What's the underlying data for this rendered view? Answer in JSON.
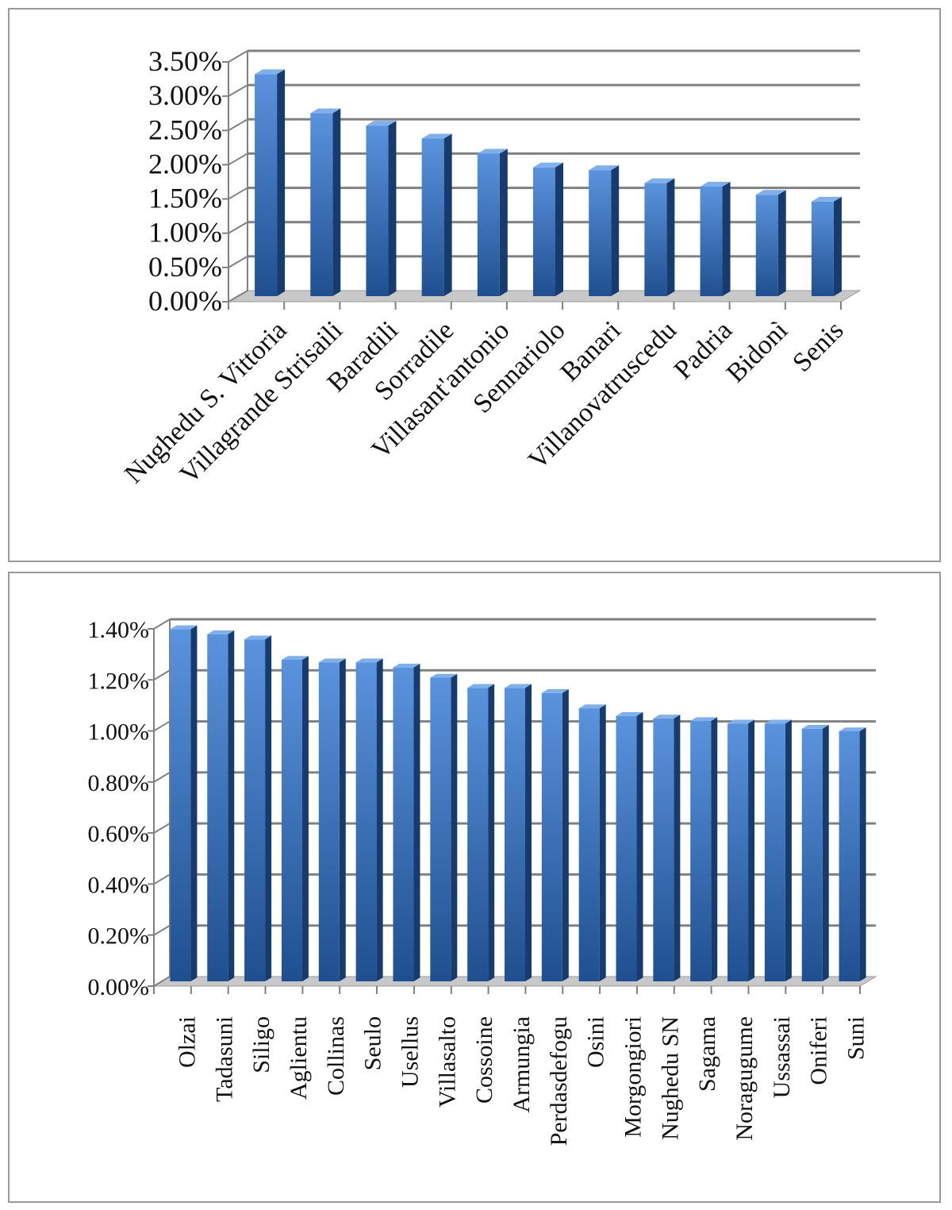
{
  "colors": {
    "bar_front_top": "#5a93dd",
    "bar_front_bottom": "#1f4f8f",
    "bar_side": "#163b6e",
    "bar_top": "#7fb0ea",
    "gridline": "#808080",
    "floor": "#c8c8c8"
  },
  "chart_data": [
    {
      "type": "bar",
      "style": "3d-column",
      "categories": [
        "Nughedu S. Vittoria",
        "Villagrande Strisaili",
        "Baradili",
        "Sorradile",
        "Villasant'antonio",
        "Sennariolo",
        "Banari",
        "Villanovatruscedu",
        "Padria",
        "Bidonì",
        "Senis"
      ],
      "values": [
        0.0324,
        0.0267,
        0.0249,
        0.023,
        0.0208,
        0.0188,
        0.0184,
        0.0165,
        0.016,
        0.0148,
        0.0138
      ],
      "ylim": [
        0,
        0.035
      ],
      "yticks": [
        "0.00%",
        "0.50%",
        "1.00%",
        "1.50%",
        "2.00%",
        "2.50%",
        "3.00%",
        "3.50%"
      ],
      "title": "",
      "xlabel": "",
      "ylabel": "",
      "grid": true,
      "legend": "none"
    },
    {
      "type": "bar",
      "style": "3d-column",
      "categories": [
        "Olzai",
        "Tadasuni",
        "Siligo",
        "Aglientu",
        "Collinas",
        "Seulo",
        "Usellus",
        "Villasalto",
        "Cossoine",
        "Armungia",
        "Perdasdefogu",
        "Osini",
        "Morgongiori",
        "Nughedu SN",
        "Sagama",
        "Noragugume",
        "Ussassai",
        "Oniferi",
        "Suni"
      ],
      "values": [
        0.0138,
        0.0136,
        0.0134,
        0.0126,
        0.0125,
        0.0125,
        0.0123,
        0.0119,
        0.0115,
        0.0115,
        0.0113,
        0.0107,
        0.0104,
        0.0103,
        0.0102,
        0.0101,
        0.0101,
        0.0099,
        0.0098
      ],
      "ylim": [
        0,
        0.014
      ],
      "yticks": [
        "0.00%",
        "0.20%",
        "0.40%",
        "0.60%",
        "0.80%",
        "1.00%",
        "1.20%",
        "1.40%"
      ],
      "title": "",
      "xlabel": "",
      "ylabel": "",
      "grid": true,
      "legend": "none"
    }
  ]
}
